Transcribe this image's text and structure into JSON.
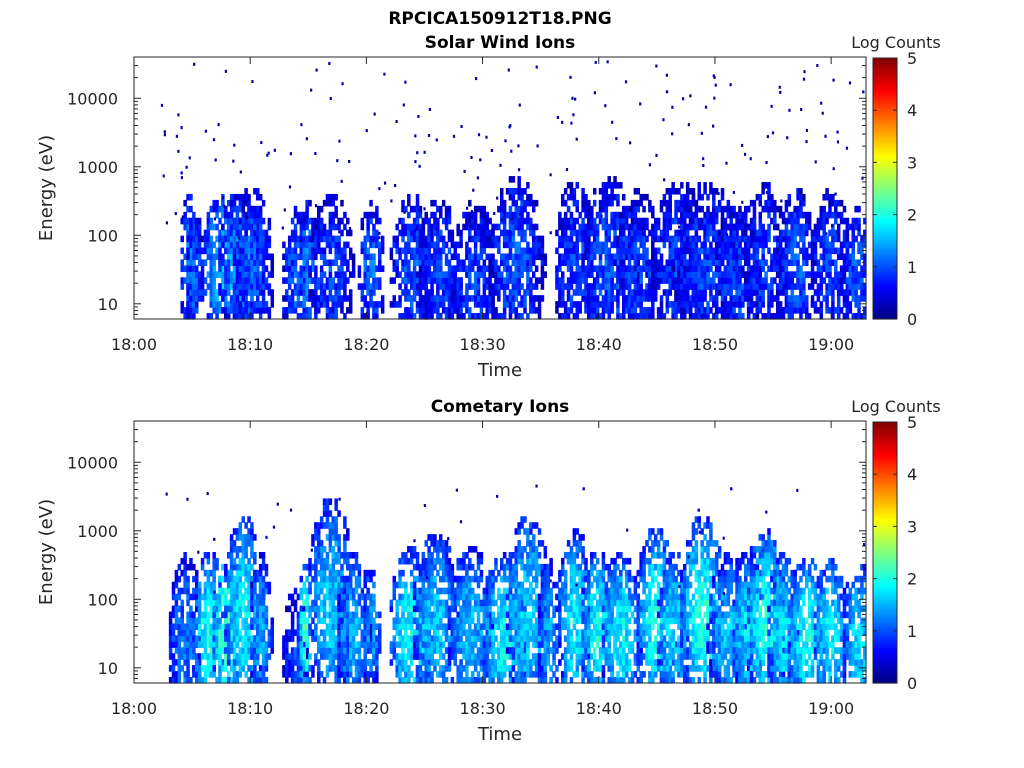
{
  "figure_title": "RPCICA150912T18.PNG",
  "colors": {
    "colormap": [
      "#00007f",
      "#0000ff",
      "#007fff",
      "#00ffff",
      "#7fff7f",
      "#ffff00",
      "#ff7f00",
      "#ff0000",
      "#7f0000"
    ],
    "axis": "#262626",
    "background": "#ffffff"
  },
  "chart_data": [
    {
      "type": "heatmap",
      "title": "Solar Wind Ions",
      "xlabel": "Time",
      "ylabel": "Energy (eV)",
      "xticks": [
        "18:00",
        "18:10",
        "18:20",
        "18:30",
        "18:40",
        "18:50",
        "19:00"
      ],
      "yticks": [
        "10",
        "100",
        "1000",
        "10000"
      ],
      "x_range_minutes_after_1800": [
        0,
        63
      ],
      "y_range_eV": [
        6,
        40000
      ],
      "y_scale": "log",
      "colorbar": {
        "label": "Log Counts",
        "ticks": [
          "0",
          "1",
          "2",
          "3",
          "4",
          "5"
        ],
        "range": [
          0,
          5
        ]
      },
      "clusters": [
        [
          4.6,
          35,
          0.8,
          12,
          1.3
        ],
        [
          5.1,
          25,
          0.8,
          10,
          1.0
        ],
        [
          7.6,
          30,
          2.0,
          14,
          1.5
        ],
        [
          9.1,
          35,
          2.0,
          12,
          1.3
        ],
        [
          10.1,
          30,
          1.8,
          18,
          1.0
        ],
        [
          13.8,
          20,
          1.2,
          16,
          1.0
        ],
        [
          14.8,
          35,
          0.8,
          10,
          1.3
        ],
        [
          16.8,
          30,
          2.0,
          14,
          0.9
        ],
        [
          20.3,
          30,
          1.2,
          10,
          1.1
        ],
        [
          23.8,
          30,
          2.0,
          14,
          1.0
        ],
        [
          26.2,
          30,
          2.0,
          12,
          0.9
        ],
        [
          29.2,
          20,
          2.0,
          16,
          0.9
        ],
        [
          32.8,
          40,
          2.5,
          18,
          1.0
        ],
        [
          37.8,
          35,
          1.8,
          18,
          0.9
        ],
        [
          40.8,
          35,
          2.5,
          20,
          1.0
        ],
        [
          43.2,
          30,
          2.0,
          16,
          0.9
        ],
        [
          46.8,
          35,
          2.5,
          18,
          0.9
        ],
        [
          49.2,
          30,
          3.0,
          20,
          0.9
        ],
        [
          51.8,
          25,
          2.0,
          14,
          0.9
        ],
        [
          54.2,
          40,
          2.0,
          14,
          0.9
        ],
        [
          56.8,
          35,
          1.8,
          14,
          1.0
        ],
        [
          59.8,
          35,
          1.8,
          14,
          0.9
        ],
        [
          62.2,
          25,
          1.5,
          10,
          1.0
        ]
      ],
      "scatter": {
        "count": 200,
        "e_min": 90,
        "e_max": 35000,
        "level": 0.2
      }
    },
    {
      "type": "heatmap",
      "title": "Cometary Ions",
      "xlabel": "Time",
      "ylabel": "Energy (eV)",
      "xticks": [
        "18:00",
        "18:10",
        "18:20",
        "18:30",
        "18:40",
        "18:50",
        "19:00"
      ],
      "yticks": [
        "10",
        "100",
        "1000",
        "10000"
      ],
      "x_range_minutes_after_1800": [
        0,
        63
      ],
      "y_range_eV": [
        6,
        40000
      ],
      "y_scale": "log",
      "colorbar": {
        "label": "Log Counts",
        "ticks": [
          "0",
          "1",
          "2",
          "3",
          "4",
          "5"
        ],
        "range": [
          0,
          5
        ]
      },
      "clusters": [
        [
          4.3,
          25,
          1.5,
          20,
          1.2
        ],
        [
          6.3,
          30,
          1.5,
          18,
          1.9
        ],
        [
          7.8,
          35,
          1.2,
          16,
          2.3
        ],
        [
          9.3,
          60,
          1.8,
          30,
          1.8
        ],
        [
          10.8,
          35,
          1.0,
          14,
          1.4
        ],
        [
          13.8,
          15,
          1.2,
          10,
          0.9
        ],
        [
          14.6,
          35,
          0.6,
          10,
          2.2
        ],
        [
          16.8,
          80,
          2.0,
          40,
          1.6
        ],
        [
          18.8,
          30,
          1.5,
          16,
          1.5
        ],
        [
          20.3,
          35,
          0.8,
          10,
          1.4
        ],
        [
          23.8,
          35,
          2.0,
          16,
          1.9
        ],
        [
          25.8,
          50,
          2.0,
          20,
          1.6
        ],
        [
          28.8,
          35,
          2.0,
          18,
          1.5
        ],
        [
          31.8,
          30,
          2.0,
          16,
          1.9
        ],
        [
          33.8,
          60,
          2.0,
          30,
          1.7
        ],
        [
          35.6,
          30,
          1.0,
          14,
          1.4
        ],
        [
          37.8,
          50,
          1.5,
          24,
          1.8
        ],
        [
          39.8,
          35,
          1.5,
          16,
          1.9
        ],
        [
          41.8,
          30,
          1.8,
          18,
          1.8
        ],
        [
          44.8,
          50,
          1.8,
          24,
          1.9
        ],
        [
          46.3,
          35,
          1.5,
          16,
          1.7
        ],
        [
          48.8,
          60,
          2.0,
          28,
          2.0
        ],
        [
          51.2,
          30,
          2.0,
          16,
          1.6
        ],
        [
          52.8,
          35,
          1.5,
          16,
          1.8
        ],
        [
          54.3,
          50,
          1.8,
          22,
          2.0
        ],
        [
          55.8,
          30,
          1.5,
          16,
          1.7
        ],
        [
          57.8,
          30,
          1.8,
          16,
          1.9
        ],
        [
          59.8,
          30,
          1.5,
          14,
          1.8
        ],
        [
          62.3,
          25,
          1.5,
          14,
          1.7
        ]
      ],
      "scatter": {
        "count": 30,
        "e_min": 120,
        "e_max": 4500,
        "level": 0.2
      },
      "isolated_points": [
        [
          6.8,
          750
        ],
        [
          38.6,
          4100
        ],
        [
          48.5,
          2000
        ],
        [
          48.6,
          950
        ],
        [
          51.3,
          4100
        ]
      ]
    }
  ]
}
